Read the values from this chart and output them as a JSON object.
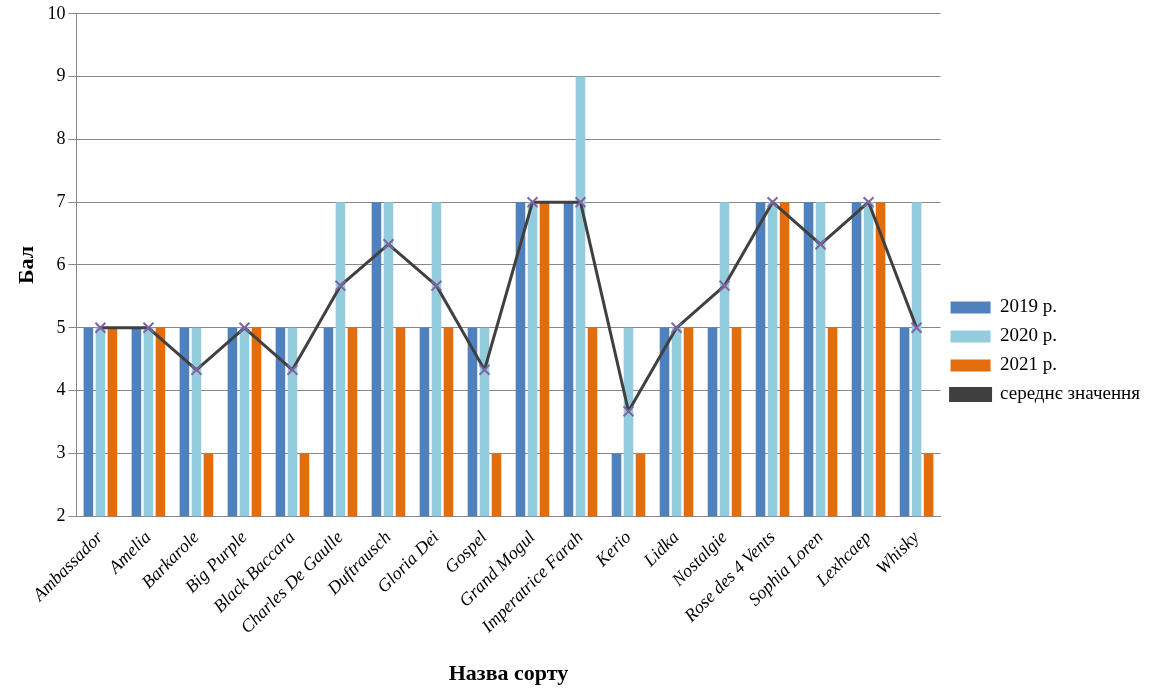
{
  "chart_data": {
    "type": "bar",
    "xlabel": "Назва сорту",
    "ylabel": "Бал",
    "categories": [
      "Ambassador",
      "Amelia",
      "Barkarole",
      "Big Purple",
      "Black Baccara",
      "Charles De Gaulle",
      "Duftrausch",
      "Gloria Dei",
      "Gospel",
      "Grand Mogul",
      "Imperatrice Farah",
      "Kerio",
      "Lidka",
      "Nostalgie",
      "Rose des 4 Vents",
      "Sophia Loren",
      "Lexhcaep",
      "Whisky"
    ],
    "series": [
      {
        "name": "2019 р.",
        "color": "#4f81bd",
        "values": [
          5,
          5,
          5,
          5,
          5,
          5,
          7,
          5,
          5,
          7,
          7,
          3,
          5,
          5,
          7,
          7,
          7,
          5
        ]
      },
      {
        "name": "2020 р.",
        "color": "#93cddd",
        "values": [
          5,
          5,
          5,
          5,
          5,
          7,
          7,
          7,
          5,
          7,
          9,
          5,
          5,
          7,
          7,
          7,
          7,
          7
        ]
      },
      {
        "name": "2021 р.",
        "color": "#e46c0a",
        "values": [
          5,
          5,
          3,
          5,
          3,
          5,
          5,
          5,
          3,
          7,
          5,
          3,
          5,
          5,
          7,
          5,
          7,
          3
        ]
      },
      {
        "name": "середнє значення",
        "type": "line",
        "color": "#404040",
        "marker": "cross",
        "values": [
          5,
          5,
          4.33,
          5,
          4.33,
          5.67,
          6.33,
          5.67,
          4.33,
          7,
          7,
          3.67,
          5,
          5.67,
          7,
          6.33,
          7,
          5
        ]
      }
    ],
    "ylim": [
      2,
      10
    ],
    "yticks": [
      2,
      3,
      4,
      5,
      6,
      7,
      8,
      9,
      10
    ],
    "grid": "y",
    "legend": "right"
  }
}
